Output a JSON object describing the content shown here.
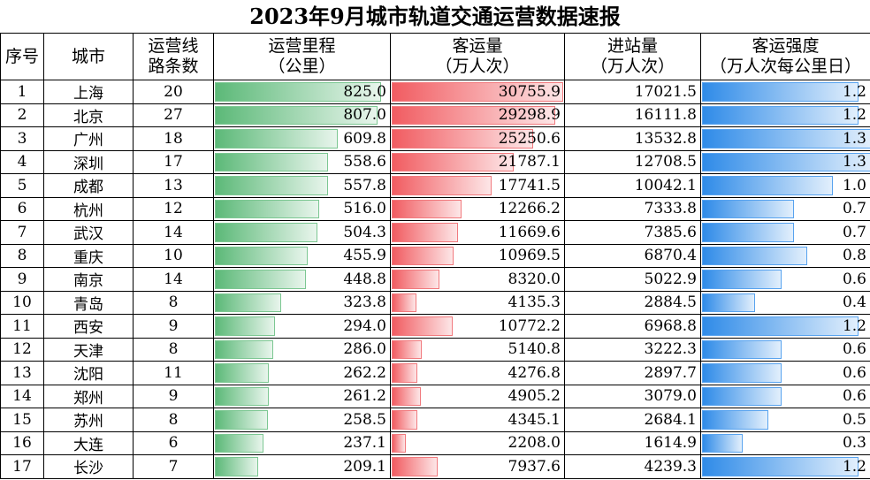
{
  "title": "2023年9月城市轨道交通运营数据速报",
  "headers": {
    "rank": "序号",
    "city": "城市",
    "lines": "运营线\n路条数",
    "mileage": "运营里程\n（公里）",
    "ridership": "客运量\n（万人次）",
    "entries": "进站量\n（万人次）",
    "intensity": "客运强度\n（万人次每公里日）"
  },
  "rows": [
    {
      "rank": "1",
      "city": "上海",
      "lines": "20",
      "mileage": "825.0",
      "ridership": "30755.9",
      "entries": "17021.5",
      "intensity": "1.2"
    },
    {
      "rank": "2",
      "city": "北京",
      "lines": "27",
      "mileage": "807.0",
      "ridership": "29298.9",
      "entries": "16111.8",
      "intensity": "1.2"
    },
    {
      "rank": "3",
      "city": "广州",
      "lines": "18",
      "mileage": "609.8",
      "ridership": "25250.6",
      "entries": "13532.8",
      "intensity": "1.3"
    },
    {
      "rank": "4",
      "city": "深圳",
      "lines": "17",
      "mileage": "558.6",
      "ridership": "21787.1",
      "entries": "12708.5",
      "intensity": "1.3"
    },
    {
      "rank": "5",
      "city": "成都",
      "lines": "13",
      "mileage": "557.8",
      "ridership": "17741.5",
      "entries": "10042.1",
      "intensity": "1.0"
    },
    {
      "rank": "6",
      "city": "杭州",
      "lines": "12",
      "mileage": "516.0",
      "ridership": "12266.2",
      "entries": "7333.8",
      "intensity": "0.7"
    },
    {
      "rank": "7",
      "city": "武汉",
      "lines": "14",
      "mileage": "504.3",
      "ridership": "11669.6",
      "entries": "7385.6",
      "intensity": "0.7"
    },
    {
      "rank": "8",
      "city": "重庆",
      "lines": "10",
      "mileage": "455.9",
      "ridership": "10969.5",
      "entries": "6870.4",
      "intensity": "0.8"
    },
    {
      "rank": "9",
      "city": "南京",
      "lines": "14",
      "mileage": "448.8",
      "ridership": "8320.0",
      "entries": "5022.9",
      "intensity": "0.6"
    },
    {
      "rank": "10",
      "city": "青岛",
      "lines": "8",
      "mileage": "323.8",
      "ridership": "4135.3",
      "entries": "2884.5",
      "intensity": "0.4"
    },
    {
      "rank": "11",
      "city": "西安",
      "lines": "9",
      "mileage": "294.0",
      "ridership": "10772.2",
      "entries": "6968.8",
      "intensity": "1.2"
    },
    {
      "rank": "12",
      "city": "天津",
      "lines": "8",
      "mileage": "286.0",
      "ridership": "5140.8",
      "entries": "3222.3",
      "intensity": "0.6"
    },
    {
      "rank": "13",
      "city": "沈阳",
      "lines": "11",
      "mileage": "262.2",
      "ridership": "4276.8",
      "entries": "2897.7",
      "intensity": "0.6"
    },
    {
      "rank": "14",
      "city": "郑州",
      "lines": "9",
      "mileage": "261.2",
      "ridership": "4905.2",
      "entries": "3079.0",
      "intensity": "0.6"
    },
    {
      "rank": "15",
      "city": "苏州",
      "lines": "8",
      "mileage": "258.5",
      "ridership": "4345.1",
      "entries": "2684.1",
      "intensity": "0.5"
    },
    {
      "rank": "16",
      "city": "大连",
      "lines": "6",
      "mileage": "237.1",
      "ridership": "2208.0",
      "entries": "1614.9",
      "intensity": "0.3"
    },
    {
      "rank": "17",
      "city": "长沙",
      "lines": "7",
      "mileage": "209.1",
      "ridership": "7937.6",
      "entries": "4239.3",
      "intensity": "1.2"
    }
  ],
  "bar_colors": {
    "mileage": "#5cb978",
    "ridership": "#f15c61",
    "intensity": "#2f8be8"
  },
  "bar_max": {
    "mileage": 825.0,
    "ridership": 30755.9,
    "intensity": 1.3
  }
}
